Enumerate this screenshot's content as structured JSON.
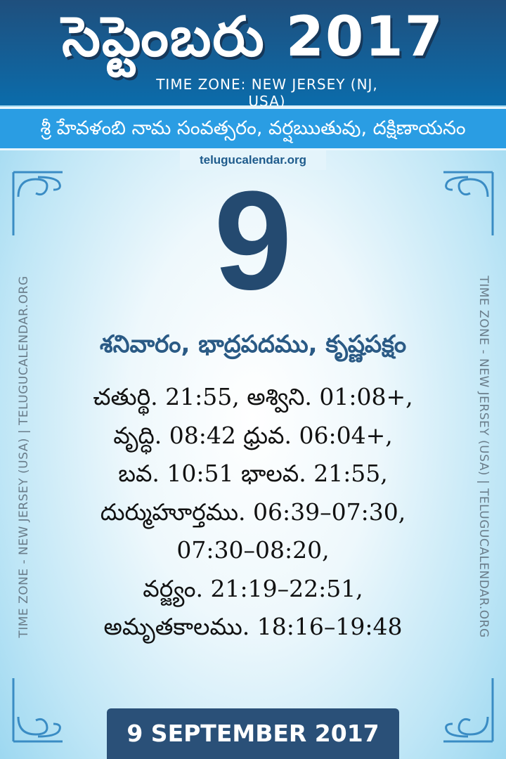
{
  "header": {
    "title": "సెప్టెంబరు 2017",
    "timezone": "TIME ZONE: NEW JERSEY (NJ, USA)"
  },
  "band": {
    "samvatsaram": "శ్రీ హేవళంబి నామ సంవత్సరం, వర్షఋతువు, దక్షిణాయనం"
  },
  "site": "telugucalendar.org",
  "day": "9",
  "weekday_line": "శనివారం, భాద్రపదము, కృష్ణపక్షం",
  "details": [
    "చతుర్థి. 21:55,  అశ్విని. 01:08+,",
    "వృద్ధి. 08:42 ధ్రువ. 06:04+,",
    "బవ. 10:51 భాలవ. 21:55,",
    "దుర్ముహూర్తము. 06:39–07:30,",
    "07:30–08:20,",
    "వర్జ్యం. 21:19–22:51,",
    "అమృతకాలము. 18:16–19:48"
  ],
  "side_text": "TIME ZONE - NEW JERSEY (USA) | TELUGUCALENDAR.ORG",
  "footer": "9 SEPTEMBER 2017",
  "colors": {
    "header": "#1f4f7d",
    "band": "#2a9de3",
    "day": "#244a70",
    "footer": "#2a5078"
  }
}
